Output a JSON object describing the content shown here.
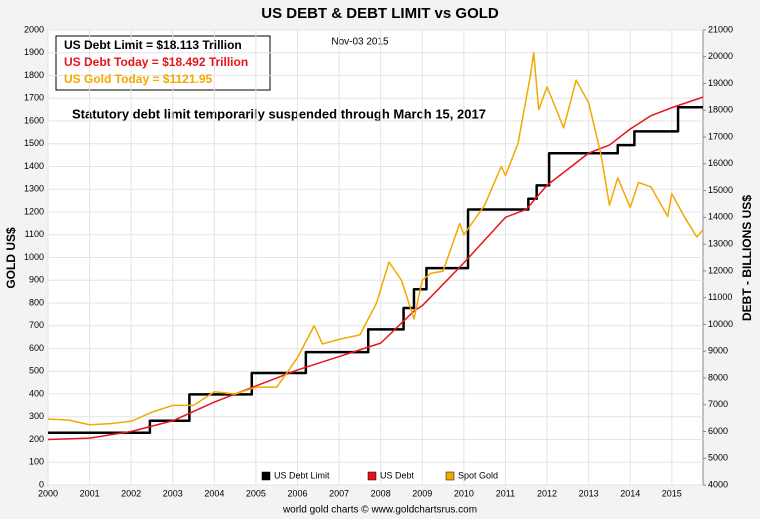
{
  "chart_data": {
    "type": "line",
    "title": "US DEBT & DEBT LIMIT vs GOLD",
    "date_label": "Nov-03  2015",
    "annotations": [
      {
        "text": "US Debt Limit     = $18.113 Trillion",
        "color": "#000000"
      },
      {
        "text": "US Debt Today = $18.492 Trillion",
        "color": "#e8141c"
      },
      {
        "text": "US Gold Today = $1121.95",
        "color": "#f2a900"
      }
    ],
    "note": "Statutory debt limit temporarily suspended through March  15, 2017",
    "ylabel": "GOLD US$",
    "y2label": "DEBT - BILLIONS US$",
    "footer": "world gold charts © www.goldchartsrus.com",
    "xlim": [
      2000,
      2015.75
    ],
    "xticks": [
      2000,
      2001,
      2002,
      2003,
      2004,
      2005,
      2006,
      2007,
      2008,
      2009,
      2010,
      2011,
      2012,
      2013,
      2014,
      2015
    ],
    "ylim": [
      0,
      2000
    ],
    "yticks": [
      0,
      100,
      200,
      300,
      400,
      500,
      600,
      700,
      800,
      900,
      1000,
      1100,
      1200,
      1300,
      1400,
      1500,
      1600,
      1700,
      1800,
      1900,
      2000
    ],
    "y2lim": [
      4000,
      21000
    ],
    "y2ticks": [
      4000,
      5000,
      6000,
      7000,
      8000,
      9000,
      10000,
      11000,
      12000,
      13000,
      14000,
      15000,
      16000,
      17000,
      18000,
      19000,
      20000,
      21000
    ],
    "grid": true,
    "legend": "bottom",
    "series": [
      {
        "name": "US Debt Limit",
        "color": "#000000",
        "axis": "y2",
        "step": true,
        "x": [
          2000,
          2002.45,
          2003.4,
          2004.9,
          2006.2,
          2007.7,
          2008.55,
          2008.8,
          2009.1,
          2010.1,
          2011.55,
          2011.75,
          2012.05,
          2013.7,
          2014.1,
          2015.15,
          2015.75
        ],
        "values": [
          5950,
          6400,
          7384,
          8184,
          8965,
          9815,
          10615,
          11315,
          12104,
          14294,
          14694,
          15194,
          16394,
          16699,
          17212,
          18113,
          18113
        ]
      },
      {
        "name": "US Debt",
        "color": "#e8141c",
        "axis": "y2",
        "x": [
          2000,
          2001,
          2002,
          2003,
          2004,
          2005,
          2006,
          2007,
          2008,
          2008.8,
          2009,
          2010,
          2011,
          2011.5,
          2012,
          2013,
          2013.5,
          2014,
          2014.5,
          2015,
          2015.75
        ],
        "values": [
          5700,
          5750,
          6000,
          6400,
          7100,
          7700,
          8300,
          8800,
          9300,
          10500,
          10700,
          12300,
          14000,
          14300,
          15200,
          16400,
          16700,
          17300,
          17800,
          18100,
          18492
        ]
      },
      {
        "name": "Spot Gold",
        "color": "#f2a900",
        "axis": "y",
        "x": [
          2000,
          2000.5,
          2001,
          2001.5,
          2002,
          2002.5,
          2003,
          2003.5,
          2004,
          2004.5,
          2005,
          2005.5,
          2006,
          2006.4,
          2006.6,
          2007,
          2007.5,
          2007.9,
          2008.2,
          2008.5,
          2008.8,
          2009,
          2009.2,
          2009.5,
          2009.9,
          2010,
          2010.5,
          2010.9,
          2011,
          2011.3,
          2011.6,
          2011.68,
          2011.8,
          2012,
          2012.4,
          2012.7,
          2013,
          2013.3,
          2013.5,
          2013.7,
          2014,
          2014.2,
          2014.5,
          2014.9,
          2015,
          2015.3,
          2015.6,
          2015.75
        ],
        "values": [
          290,
          285,
          265,
          270,
          280,
          320,
          350,
          350,
          410,
          400,
          430,
          430,
          560,
          700,
          620,
          640,
          660,
          800,
          980,
          900,
          730,
          900,
          930,
          940,
          1150,
          1100,
          1230,
          1400,
          1360,
          1500,
          1800,
          1900,
          1650,
          1750,
          1570,
          1780,
          1680,
          1450,
          1230,
          1350,
          1220,
          1330,
          1310,
          1180,
          1280,
          1180,
          1090,
          1122
        ]
      }
    ]
  }
}
